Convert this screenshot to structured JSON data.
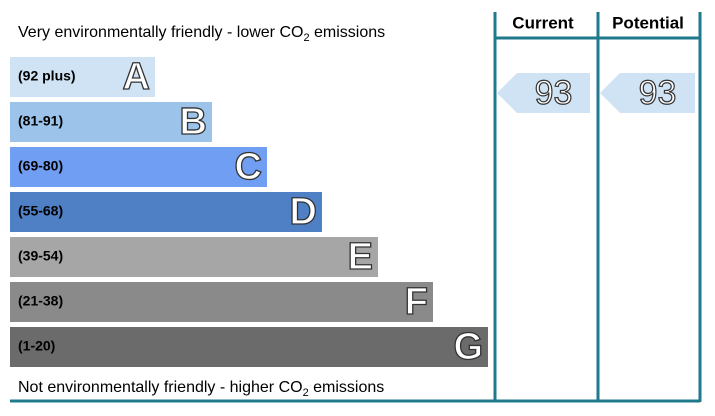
{
  "top_label": {
    "before": "Very environmentally friendly - lower CO",
    "sub": "2",
    "after": " emissions"
  },
  "bottom_label": {
    "before": "Not environmentally friendly - higher CO",
    "sub": "2",
    "after": " emissions"
  },
  "columns": {
    "current": "Current",
    "potential": "Potential"
  },
  "bands": [
    {
      "range": "(92 plus)",
      "letter": "A",
      "color": "#cfe3f5"
    },
    {
      "range": "(81-91)",
      "letter": "B",
      "color": "#9cc4ea"
    },
    {
      "range": "(69-80)",
      "letter": "C",
      "color": "#6f9ef3"
    },
    {
      "range": "(55-68)",
      "letter": "D",
      "color": "#4f7fc4"
    },
    {
      "range": "(39-54)",
      "letter": "E",
      "color": "#a6a6a6"
    },
    {
      "range": "(21-38)",
      "letter": "F",
      "color": "#8a8a8a"
    },
    {
      "range": "(1-20)",
      "letter": "G",
      "color": "#6b6b6b"
    }
  ],
  "current": {
    "score": "93",
    "color": "#cfe3f5"
  },
  "potential": {
    "score": "93",
    "color": "#cfe3f5"
  }
}
